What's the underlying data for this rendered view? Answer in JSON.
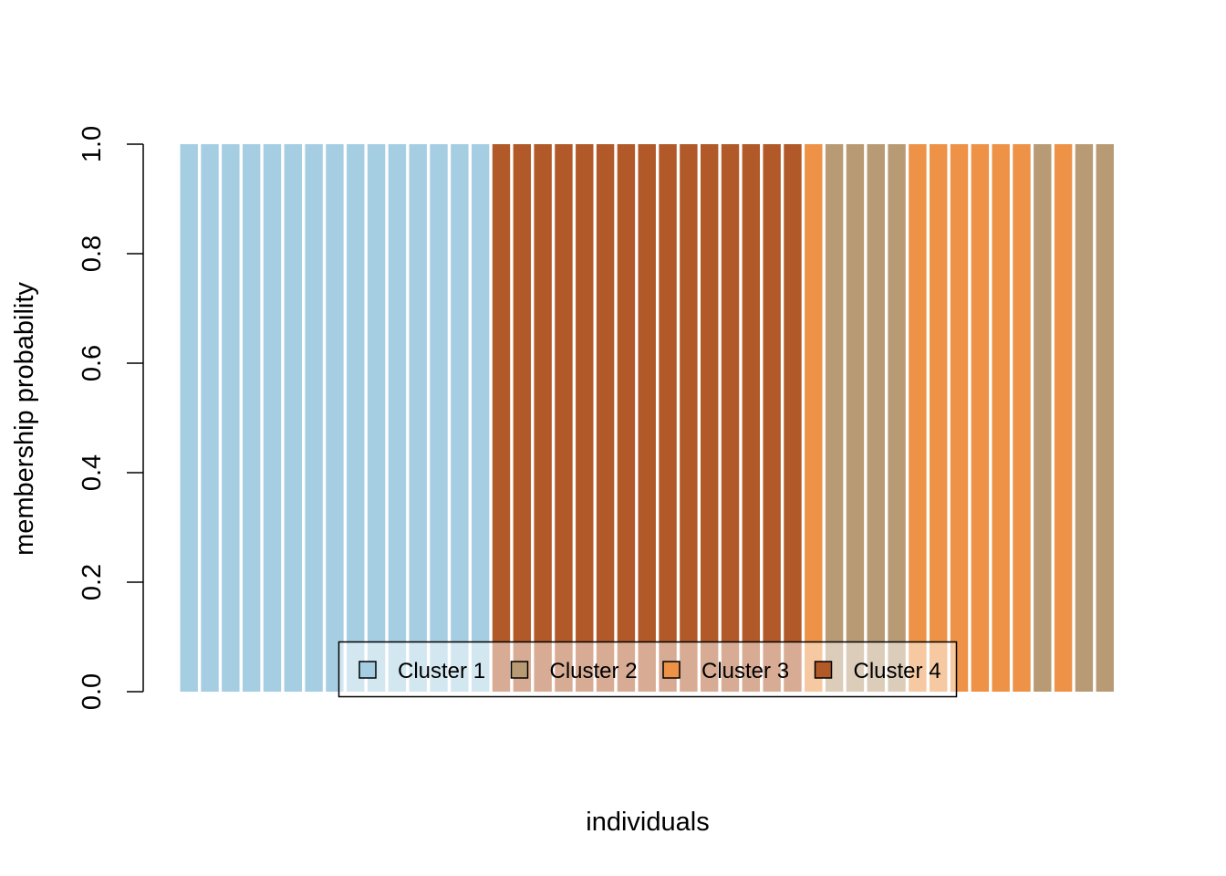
{
  "chart_data": {
    "type": "bar",
    "stacked": true,
    "title": "",
    "xlabel": "individuals",
    "ylabel": "membership probability",
    "ylim": [
      0,
      1
    ],
    "yticks": [
      "0.0",
      "0.2",
      "0.4",
      "0.6",
      "0.8",
      "1.0"
    ],
    "ytick_values": [
      0,
      0.2,
      0.4,
      0.6,
      0.8,
      1.0
    ],
    "n_individuals": 45,
    "assigned_cluster": [
      1,
      1,
      1,
      1,
      1,
      1,
      1,
      1,
      1,
      1,
      1,
      1,
      1,
      1,
      1,
      4,
      4,
      4,
      4,
      4,
      4,
      4,
      4,
      4,
      4,
      4,
      4,
      4,
      4,
      4,
      3,
      2,
      2,
      2,
      2,
      3,
      3,
      3,
      3,
      3,
      3,
      2,
      3,
      2,
      2
    ],
    "membership_probability": 1.0,
    "series": [
      {
        "name": "Cluster 1",
        "color": "#A6CEE3"
      },
      {
        "name": "Cluster 2",
        "color": "#B89B74"
      },
      {
        "name": "Cluster 3",
        "color": "#ED9247"
      },
      {
        "name": "Cluster 4",
        "color": "#B15928"
      }
    ],
    "legend_position": "bottom-center"
  }
}
